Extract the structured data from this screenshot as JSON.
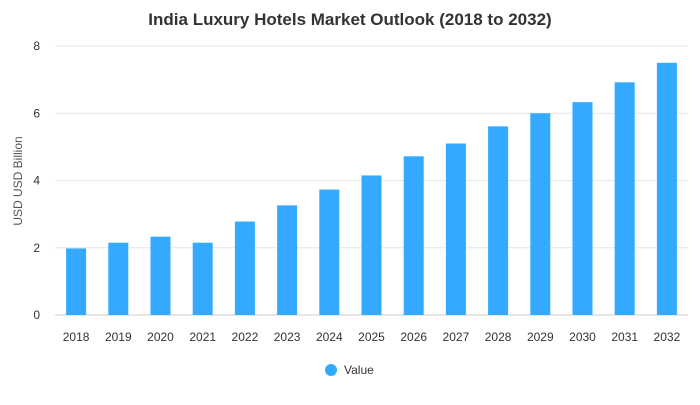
{
  "chart_data": {
    "type": "bar",
    "title": "India Luxury Hotels Market Outlook (2018 to 2032)",
    "xlabel": "",
    "ylabel": "USD USD Billion",
    "categories": [
      "2018",
      "2019",
      "2020",
      "2021",
      "2022",
      "2023",
      "2024",
      "2025",
      "2026",
      "2027",
      "2028",
      "2029",
      "2030",
      "2031",
      "2032"
    ],
    "series": [
      {
        "name": "Value",
        "color": "#33aaff",
        "values": [
          1.98,
          2.15,
          2.33,
          2.15,
          2.78,
          3.26,
          3.73,
          4.15,
          4.72,
          5.1,
          5.61,
          6.0,
          6.33,
          6.92,
          7.5
        ]
      }
    ],
    "ylim": [
      0,
      8
    ],
    "yticks": [
      0,
      2,
      4,
      6,
      8
    ],
    "grid": true,
    "legend_position": "bottom-center"
  }
}
